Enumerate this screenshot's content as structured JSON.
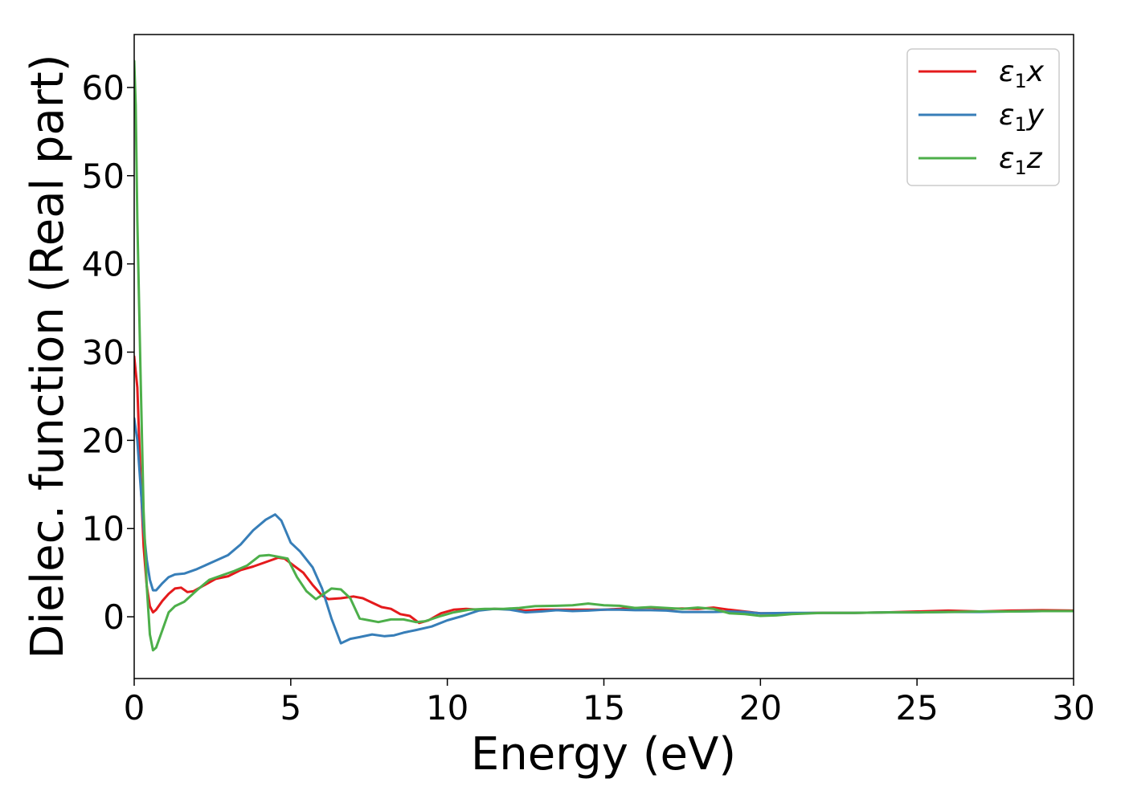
{
  "chart_data": {
    "type": "line",
    "xlabel": "Energy (eV)",
    "ylabel": "Dielec. function (Real part)",
    "xlim": [
      0,
      30
    ],
    "ylim": [
      -7,
      66
    ],
    "xticks": [
      0,
      5,
      10,
      15,
      20,
      25,
      30
    ],
    "yticks": [
      0,
      10,
      20,
      30,
      40,
      50,
      60
    ],
    "grid": false,
    "legend_position": "top-right",
    "series": [
      {
        "name": "ε1x",
        "legend": {
          "symbol": "ε",
          "sub": "1",
          "axis": "x"
        },
        "color": "#e41a1c",
        "points": [
          [
            0,
            29.5
          ],
          [
            0.1,
            26
          ],
          [
            0.2,
            16
          ],
          [
            0.3,
            8
          ],
          [
            0.4,
            3.5
          ],
          [
            0.5,
            1.2
          ],
          [
            0.6,
            0.5
          ],
          [
            0.7,
            0.8
          ],
          [
            0.9,
            1.8
          ],
          [
            1.1,
            2.6
          ],
          [
            1.3,
            3.2
          ],
          [
            1.5,
            3.3
          ],
          [
            1.7,
            2.8
          ],
          [
            1.9,
            2.9
          ],
          [
            2.2,
            3.5
          ],
          [
            2.6,
            4.3
          ],
          [
            3.0,
            4.6
          ],
          [
            3.4,
            5.3
          ],
          [
            3.8,
            5.7
          ],
          [
            4.2,
            6.2
          ],
          [
            4.6,
            6.7
          ],
          [
            4.8,
            6.6
          ],
          [
            5.1,
            5.8
          ],
          [
            5.4,
            5.0
          ],
          [
            5.7,
            3.6
          ],
          [
            6.0,
            2.4
          ],
          [
            6.2,
            2.0
          ],
          [
            6.6,
            2.1
          ],
          [
            7.0,
            2.3
          ],
          [
            7.3,
            2.1
          ],
          [
            7.6,
            1.6
          ],
          [
            7.9,
            1.1
          ],
          [
            8.2,
            0.9
          ],
          [
            8.5,
            0.3
          ],
          [
            8.8,
            0.1
          ],
          [
            9.1,
            -0.7
          ],
          [
            9.4,
            -0.4
          ],
          [
            9.8,
            0.4
          ],
          [
            10.2,
            0.8
          ],
          [
            10.6,
            0.9
          ],
          [
            11.0,
            0.8
          ],
          [
            11.5,
            0.9
          ],
          [
            12.0,
            0.85
          ],
          [
            12.5,
            0.7
          ],
          [
            13.0,
            0.8
          ],
          [
            14.0,
            0.8
          ],
          [
            15.0,
            0.8
          ],
          [
            15.5,
            0.9
          ],
          [
            16.0,
            1.0
          ],
          [
            16.5,
            1.05
          ],
          [
            17.0,
            0.9
          ],
          [
            17.5,
            0.95
          ],
          [
            18.0,
            0.9
          ],
          [
            18.5,
            1.05
          ],
          [
            19.0,
            0.8
          ],
          [
            19.5,
            0.6
          ],
          [
            20.0,
            0.4
          ],
          [
            21.0,
            0.4
          ],
          [
            22.0,
            0.45
          ],
          [
            23.0,
            0.45
          ],
          [
            24.0,
            0.5
          ],
          [
            25.0,
            0.6
          ],
          [
            26.0,
            0.7
          ],
          [
            27.0,
            0.6
          ],
          [
            28.0,
            0.7
          ],
          [
            29.0,
            0.75
          ],
          [
            30.0,
            0.7
          ]
        ]
      },
      {
        "name": "ε1y",
        "legend": {
          "symbol": "ε",
          "sub": "1",
          "axis": "y"
        },
        "color": "#377eb8",
        "points": [
          [
            0,
            22.5
          ],
          [
            0.1,
            20
          ],
          [
            0.2,
            15
          ],
          [
            0.3,
            10
          ],
          [
            0.4,
            6.5
          ],
          [
            0.5,
            4.2
          ],
          [
            0.6,
            3.0
          ],
          [
            0.7,
            3.0
          ],
          [
            0.9,
            3.8
          ],
          [
            1.1,
            4.5
          ],
          [
            1.3,
            4.8
          ],
          [
            1.6,
            4.9
          ],
          [
            2.0,
            5.4
          ],
          [
            2.5,
            6.2
          ],
          [
            3.0,
            7.0
          ],
          [
            3.4,
            8.2
          ],
          [
            3.8,
            9.8
          ],
          [
            4.2,
            11.0
          ],
          [
            4.5,
            11.6
          ],
          [
            4.7,
            10.9
          ],
          [
            5.0,
            8.4
          ],
          [
            5.3,
            7.4
          ],
          [
            5.7,
            5.6
          ],
          [
            6.0,
            3.2
          ],
          [
            6.3,
            -0.2
          ],
          [
            6.6,
            -3.0
          ],
          [
            6.9,
            -2.5
          ],
          [
            7.2,
            -2.3
          ],
          [
            7.6,
            -2.0
          ],
          [
            8.0,
            -2.2
          ],
          [
            8.3,
            -2.1
          ],
          [
            8.6,
            -1.8
          ],
          [
            9.0,
            -1.5
          ],
          [
            9.5,
            -1.1
          ],
          [
            10.0,
            -0.4
          ],
          [
            10.5,
            0.1
          ],
          [
            11.0,
            0.7
          ],
          [
            11.5,
            0.9
          ],
          [
            12.0,
            0.8
          ],
          [
            12.5,
            0.5
          ],
          [
            13.0,
            0.6
          ],
          [
            13.5,
            0.75
          ],
          [
            14.0,
            0.65
          ],
          [
            14.5,
            0.7
          ],
          [
            15.0,
            0.8
          ],
          [
            15.5,
            0.8
          ],
          [
            16.0,
            0.75
          ],
          [
            16.5,
            0.75
          ],
          [
            17.0,
            0.7
          ],
          [
            17.5,
            0.55
          ],
          [
            18.0,
            0.55
          ],
          [
            18.5,
            0.55
          ],
          [
            19.0,
            0.6
          ],
          [
            19.5,
            0.55
          ],
          [
            20.0,
            0.4
          ],
          [
            21.0,
            0.45
          ],
          [
            22.0,
            0.45
          ],
          [
            23.0,
            0.45
          ],
          [
            24.0,
            0.5
          ],
          [
            25.0,
            0.5
          ],
          [
            26.0,
            0.55
          ],
          [
            27.0,
            0.55
          ],
          [
            28.0,
            0.6
          ],
          [
            29.0,
            0.65
          ],
          [
            30.0,
            0.65
          ]
        ]
      },
      {
        "name": "ε1z",
        "legend": {
          "symbol": "ε",
          "sub": "1",
          "axis": "z"
        },
        "color": "#4daf4a",
        "points": [
          [
            0,
            63
          ],
          [
            0.05,
            58
          ],
          [
            0.1,
            45
          ],
          [
            0.2,
            28
          ],
          [
            0.3,
            12
          ],
          [
            0.4,
            3.5
          ],
          [
            0.5,
            -2.0
          ],
          [
            0.6,
            -3.8
          ],
          [
            0.7,
            -3.5
          ],
          [
            0.9,
            -1.5
          ],
          [
            1.1,
            0.5
          ],
          [
            1.3,
            1.2
          ],
          [
            1.6,
            1.7
          ],
          [
            2.0,
            3.0
          ],
          [
            2.4,
            4.2
          ],
          [
            2.8,
            4.7
          ],
          [
            3.2,
            5.2
          ],
          [
            3.6,
            5.8
          ],
          [
            4.0,
            6.9
          ],
          [
            4.3,
            7.0
          ],
          [
            4.6,
            6.8
          ],
          [
            4.9,
            6.6
          ],
          [
            5.2,
            4.5
          ],
          [
            5.5,
            2.9
          ],
          [
            5.8,
            2.0
          ],
          [
            6.1,
            2.7
          ],
          [
            6.3,
            3.2
          ],
          [
            6.6,
            3.1
          ],
          [
            6.9,
            2.1
          ],
          [
            7.2,
            -0.2
          ],
          [
            7.5,
            -0.4
          ],
          [
            7.8,
            -0.6
          ],
          [
            8.2,
            -0.3
          ],
          [
            8.6,
            -0.3
          ],
          [
            9.0,
            -0.6
          ],
          [
            9.3,
            -0.5
          ],
          [
            9.8,
            0.1
          ],
          [
            10.2,
            0.5
          ],
          [
            10.7,
            0.8
          ],
          [
            11.2,
            0.9
          ],
          [
            11.8,
            0.9
          ],
          [
            12.3,
            1.0
          ],
          [
            12.8,
            1.2
          ],
          [
            13.5,
            1.25
          ],
          [
            14.0,
            1.3
          ],
          [
            14.5,
            1.5
          ],
          [
            15.0,
            1.3
          ],
          [
            15.5,
            1.25
          ],
          [
            16.0,
            1.0
          ],
          [
            16.5,
            1.1
          ],
          [
            17.0,
            1.0
          ],
          [
            17.5,
            0.9
          ],
          [
            18.0,
            1.05
          ],
          [
            18.5,
            0.9
          ],
          [
            19.0,
            0.4
          ],
          [
            19.5,
            0.3
          ],
          [
            20.0,
            0.1
          ],
          [
            20.5,
            0.15
          ],
          [
            21.0,
            0.3
          ],
          [
            22.0,
            0.45
          ],
          [
            23.0,
            0.45
          ],
          [
            24.0,
            0.5
          ],
          [
            25.0,
            0.5
          ],
          [
            26.0,
            0.55
          ],
          [
            27.0,
            0.6
          ],
          [
            28.0,
            0.6
          ],
          [
            29.0,
            0.65
          ],
          [
            30.0,
            0.65
          ]
        ]
      }
    ]
  }
}
